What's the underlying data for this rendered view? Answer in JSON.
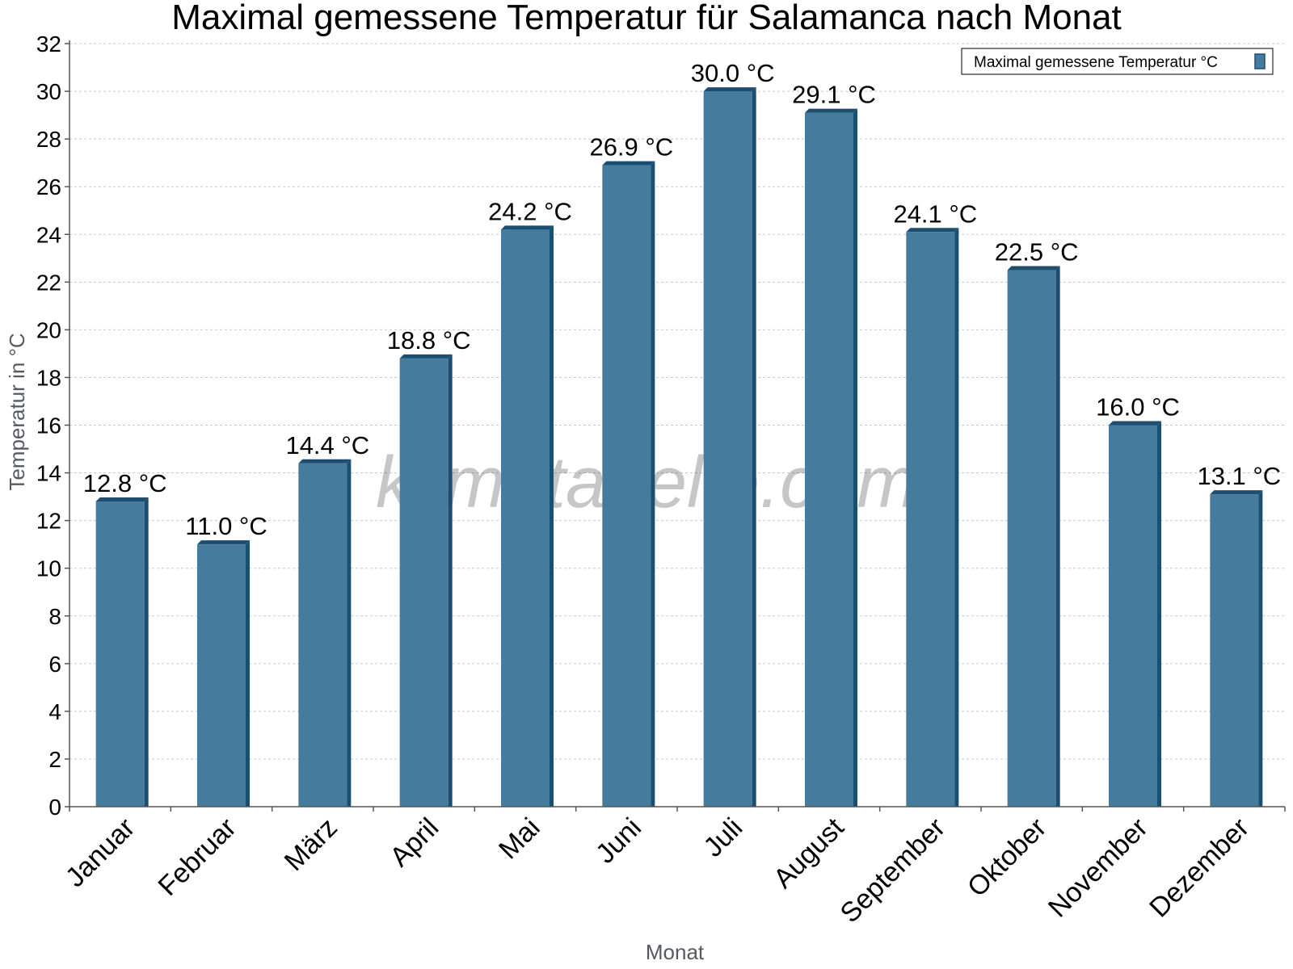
{
  "chart_data": {
    "type": "bar",
    "title": "Maximal gemessene Temperatur für Salamanca nach Monat",
    "xlabel": "Monat",
    "ylabel": "Temperatur in °C",
    "categories": [
      "Januar",
      "Februar",
      "März",
      "April",
      "Mai",
      "Juni",
      "Juli",
      "August",
      "September",
      "Oktober",
      "November",
      "Dezember"
    ],
    "series": [
      {
        "name": "Maximal gemessene Temperatur °C",
        "values": [
          12.8,
          11.0,
          14.4,
          18.8,
          24.2,
          26.9,
          30.0,
          29.1,
          24.1,
          22.5,
          16.0,
          13.1
        ],
        "labels": [
          "12.8 °C",
          "11.0 °C",
          "14.4 °C",
          "18.8 °C",
          "24.2 °C",
          "26.9 °C",
          "30.0 °C",
          "29.1 °C",
          "24.1 °C",
          "22.5 °C",
          "16.0 °C",
          "13.1 °C"
        ]
      }
    ],
    "ylim": [
      0,
      32
    ],
    "yticks": [
      "0",
      "2",
      "4",
      "6",
      "8",
      "10",
      "12",
      "14",
      "16",
      "18",
      "20",
      "22",
      "24",
      "26",
      "28",
      "30",
      "32"
    ],
    "grid": true,
    "legend_position": "top-right",
    "colors": {
      "bar": "#457b9d",
      "bar_edge": "#1d4e70",
      "grid": "#c8c8c8"
    },
    "watermark": "klimatabelle.com"
  }
}
